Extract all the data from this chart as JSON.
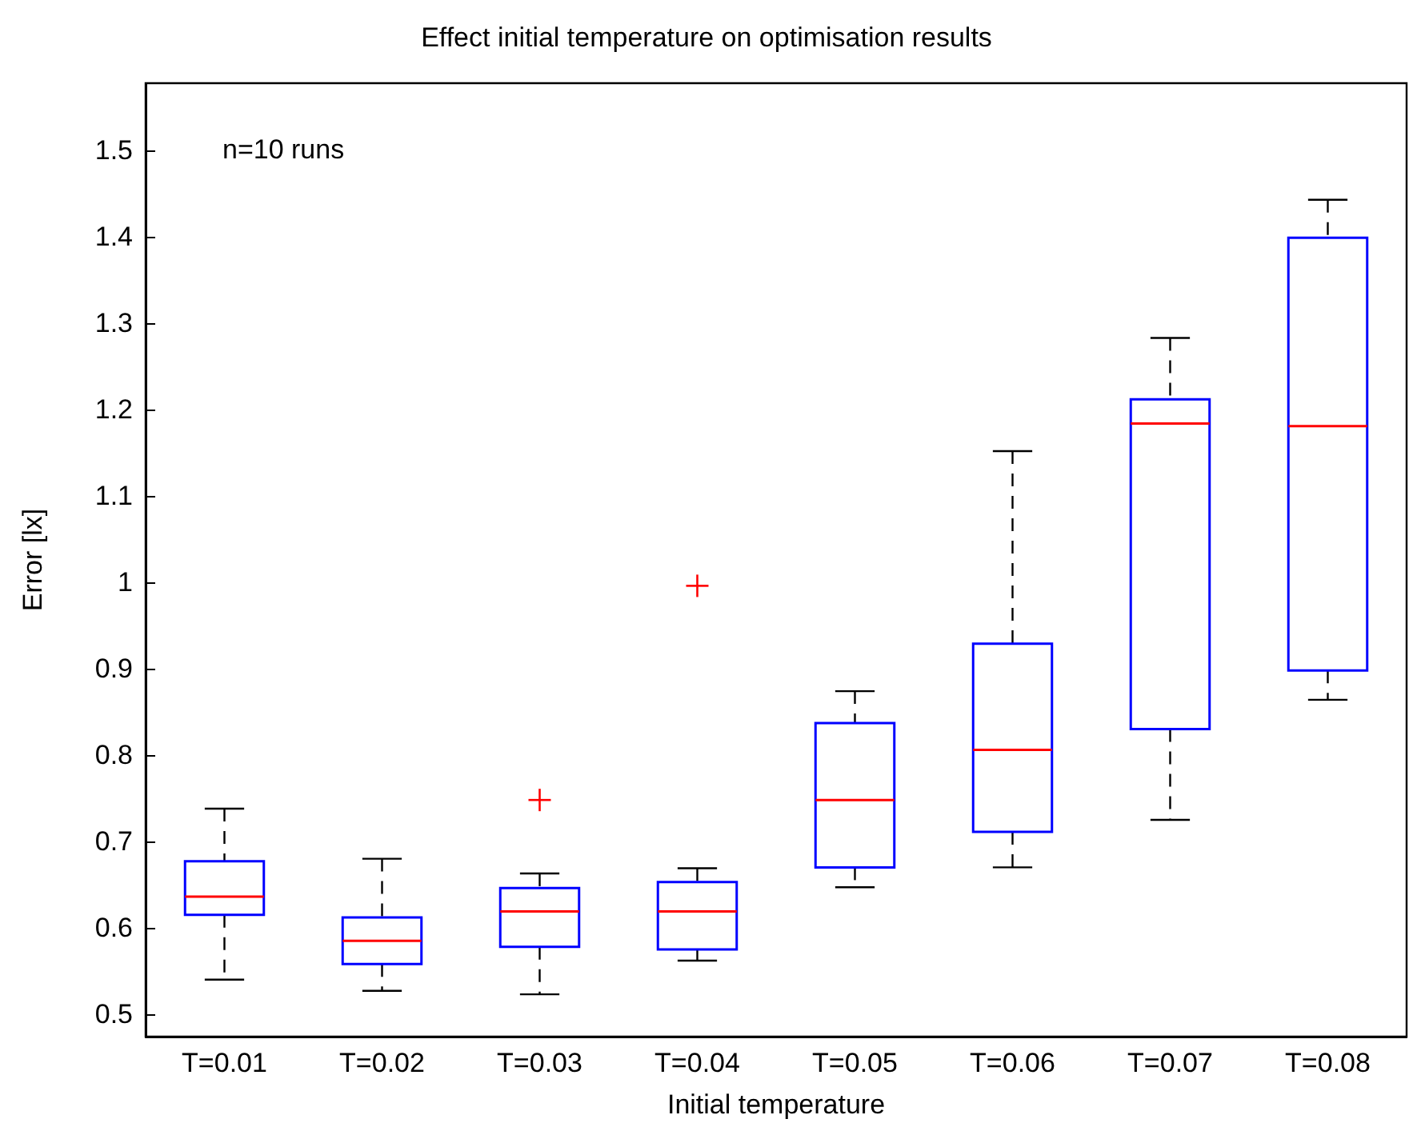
{
  "chart_data": {
    "type": "box",
    "title": "Effect initial temperature on optimisation results",
    "xlabel": "Initial temperature",
    "ylabel": "Error [lx]",
    "annotations": [
      "n=10 runs"
    ],
    "categories": [
      "T=0.01",
      "T=0.02",
      "T=0.03",
      "T=0.04",
      "T=0.05",
      "T=0.06",
      "T=0.07",
      "T=0.08"
    ],
    "color": "#0000ff",
    "boxes": [
      {
        "low": 0.54,
        "q1": 0.615,
        "median": 0.636,
        "q3": 0.677,
        "high": 0.738
      },
      {
        "low": 0.527,
        "q1": 0.558,
        "median": 0.585,
        "q3": 0.612,
        "high": 0.68
      },
      {
        "low": 0.523,
        "q1": 0.578,
        "median": 0.619,
        "q3": 0.646,
        "high": 0.663,
        "outliers": [
          0.748
        ]
      },
      {
        "low": 0.562,
        "q1": 0.575,
        "median": 0.619,
        "q3": 0.653,
        "high": 0.669,
        "outliers": [
          0.996
        ]
      },
      {
        "low": 0.647,
        "q1": 0.67,
        "median": 0.748,
        "q3": 0.837,
        "high": 0.874
      },
      {
        "low": 0.67,
        "q1": 0.711,
        "median": 0.806,
        "q3": 0.929,
        "high": 1.152
      },
      {
        "low": 0.725,
        "q1": 0.83,
        "median": 1.184,
        "q3": 1.212,
        "high": 1.283
      },
      {
        "low": 0.864,
        "q1": 0.898,
        "median": 1.181,
        "q3": 1.399,
        "high": 1.443
      }
    ],
    "ylim": [
      0.474,
      1.578
    ],
    "yticks": [
      0.5,
      0.6,
      0.7,
      0.8,
      0.9,
      1,
      1.1,
      1.2,
      1.3,
      1.4,
      1.5
    ]
  }
}
